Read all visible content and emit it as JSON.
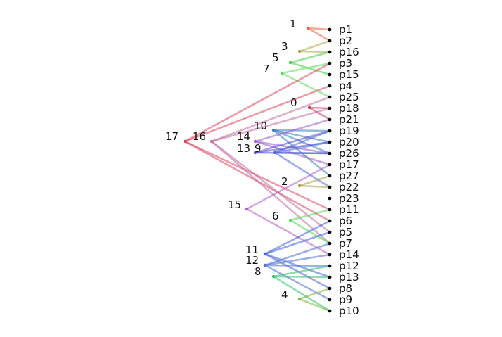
{
  "diagram": {
    "type": "dendrogram",
    "leaves": [
      "p1",
      "p2",
      "p16",
      "p3",
      "p15",
      "p4",
      "p25",
      "p18",
      "p21",
      "p19",
      "p20",
      "p26",
      "p17",
      "p27",
      "p22",
      "p23",
      "p11",
      "p6",
      "p5",
      "p7",
      "p14",
      "p12",
      "p13",
      "p8",
      "p9",
      "p10"
    ],
    "clusters": [
      {
        "label": "1",
        "color": "#e8604c",
        "children": [
          "p1",
          "p2"
        ]
      },
      {
        "label": "3",
        "color": "#b5a04a",
        "children": [
          "p2",
          "p16"
        ]
      },
      {
        "label": "5",
        "color": "#3fcf3f",
        "children": [
          "p16",
          "p15"
        ]
      },
      {
        "label": "7",
        "color": "#5fd85f",
        "children": [
          "p3",
          "p25"
        ]
      },
      {
        "label": "0",
        "color": "#c8385a",
        "children": [
          "p18",
          "p21"
        ]
      },
      {
        "label": "10",
        "color": "#3a7fc0",
        "children": [
          "p19",
          "p20",
          "p26",
          "p27"
        ]
      },
      {
        "label": "14",
        "color": "#9b5fc8",
        "children": [
          "p21",
          "p26",
          "p17"
        ]
      },
      {
        "label": "13",
        "color": "#5a4fd0",
        "children": [
          "p19",
          "p20",
          "p26"
        ]
      },
      {
        "label": "9",
        "color": "#4a6ad8",
        "children": [
          "p19",
          "p20",
          "p26",
          "p22"
        ]
      },
      {
        "label": "2",
        "color": "#a8a040",
        "children": [
          "p27",
          "p22"
        ]
      },
      {
        "label": "17",
        "color": "#d84860",
        "children": [
          "p3",
          "p4",
          "p11",
          "p6"
        ]
      },
      {
        "label": "16",
        "color": "#c070a0",
        "children": [
          "p25",
          "p18",
          "p5",
          "p7"
        ]
      },
      {
        "label": "15",
        "color": "#b060c0",
        "children": [
          "p17",
          "p14"
        ]
      },
      {
        "label": "6",
        "color": "#50d850",
        "children": [
          "p11",
          "p7"
        ]
      },
      {
        "label": "11",
        "color": "#4060d8",
        "children": [
          "p6",
          "p5",
          "p13",
          "p8"
        ]
      },
      {
        "label": "12",
        "color": "#5070d0",
        "children": [
          "p7",
          "p14",
          "p12",
          "p9"
        ]
      },
      {
        "label": "8",
        "color": "#30c070",
        "children": [
          "p12",
          "p13",
          "p10"
        ]
      },
      {
        "label": "4",
        "color": "#80b840",
        "children": [
          "p8",
          "p10"
        ]
      }
    ]
  }
}
